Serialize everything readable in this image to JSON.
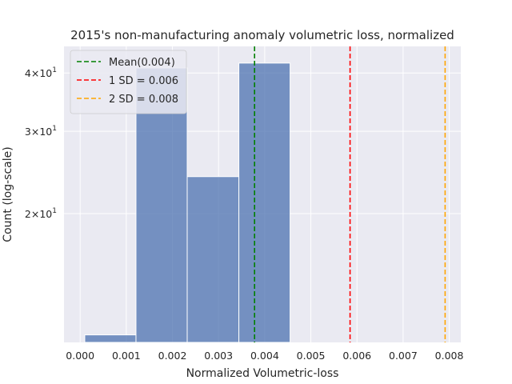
{
  "chart_data": {
    "type": "histogram",
    "title": "2015's non-manufacturing anomaly volumetric loss, normalized",
    "xlabel": "Normalized Volumetric-loss",
    "ylabel": "Count (log-scale)",
    "yscale": "log",
    "xlim": [
      -0.00035,
      0.00825
    ],
    "ylim": [
      10.6,
      45.6
    ],
    "grid": true,
    "x_ticks": [
      0.0,
      0.001,
      0.002,
      0.003,
      0.004,
      0.005,
      0.006,
      0.007,
      0.008
    ],
    "x_tick_labels": [
      "0.000",
      "0.001",
      "0.002",
      "0.003",
      "0.004",
      "0.005",
      "0.006",
      "0.007",
      "0.008"
    ],
    "y_ticks": [
      {
        "value": 20,
        "mantissa": "2",
        "base": "10",
        "exp": "1"
      },
      {
        "value": 30,
        "mantissa": "3",
        "base": "10",
        "exp": "1"
      },
      {
        "value": 40,
        "mantissa": "4",
        "base": "10",
        "exp": "1"
      }
    ],
    "bins": [
      {
        "x0": 0.0001,
        "x1": 0.00121,
        "count": 11
      },
      {
        "x0": 0.00121,
        "x1": 0.00232,
        "count": 41
      },
      {
        "x0": 0.00232,
        "x1": 0.00344,
        "count": 24
      },
      {
        "x0": 0.00344,
        "x1": 0.00455,
        "count": 42
      }
    ],
    "bar_color": "#4c72b0",
    "vlines": [
      {
        "label": "Mean(0.004)",
        "x": 0.00378,
        "color": "#008000"
      },
      {
        "label": "1 SD = 0.006",
        "x": 0.00585,
        "color": "#ff0000"
      },
      {
        "label": "2 SD = 0.008",
        "x": 0.00791,
        "color": "#ffa500"
      }
    ],
    "legend_position": "top-left"
  }
}
